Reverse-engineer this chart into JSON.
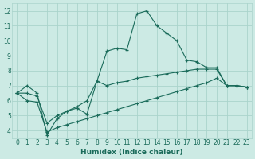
{
  "bg_color": "#cceae4",
  "grid_color": "#aad4cc",
  "line_color": "#1a6b5a",
  "xlabel": "Humidex (Indice chaleur)",
  "ylim": [
    3.5,
    12.5
  ],
  "xlim": [
    -0.5,
    23.5
  ],
  "y_ticks": [
    4,
    5,
    6,
    7,
    8,
    9,
    10,
    11,
    12
  ],
  "x_ticks": [
    0,
    1,
    2,
    3,
    4,
    5,
    6,
    7,
    8,
    9,
    10,
    11,
    12,
    13,
    14,
    15,
    16,
    17,
    18,
    19,
    20,
    21,
    22,
    23
  ],
  "main_line_y": [
    6.5,
    7.0,
    6.5,
    3.7,
    4.8,
    5.3,
    5.5,
    5.1,
    7.3,
    9.3,
    9.5,
    9.4,
    11.8,
    12.0,
    11.0,
    10.5,
    10.0,
    8.7,
    8.6,
    8.2,
    8.2,
    7.0,
    7.0,
    6.9
  ],
  "upper_line_y": [
    6.5,
    6.5,
    6.3,
    4.5,
    5.0,
    5.3,
    5.6,
    6.0,
    7.3,
    7.0,
    7.2,
    7.3,
    7.5,
    7.6,
    7.7,
    7.8,
    7.9,
    8.0,
    8.1,
    8.1,
    8.1,
    7.0,
    7.0,
    6.9
  ],
  "lower_line_y": [
    6.5,
    6.0,
    5.9,
    3.9,
    4.2,
    4.4,
    4.6,
    4.8,
    5.0,
    5.2,
    5.4,
    5.6,
    5.8,
    6.0,
    6.2,
    6.4,
    6.6,
    6.8,
    7.0,
    7.2,
    7.5,
    7.0,
    7.0,
    6.9
  ]
}
